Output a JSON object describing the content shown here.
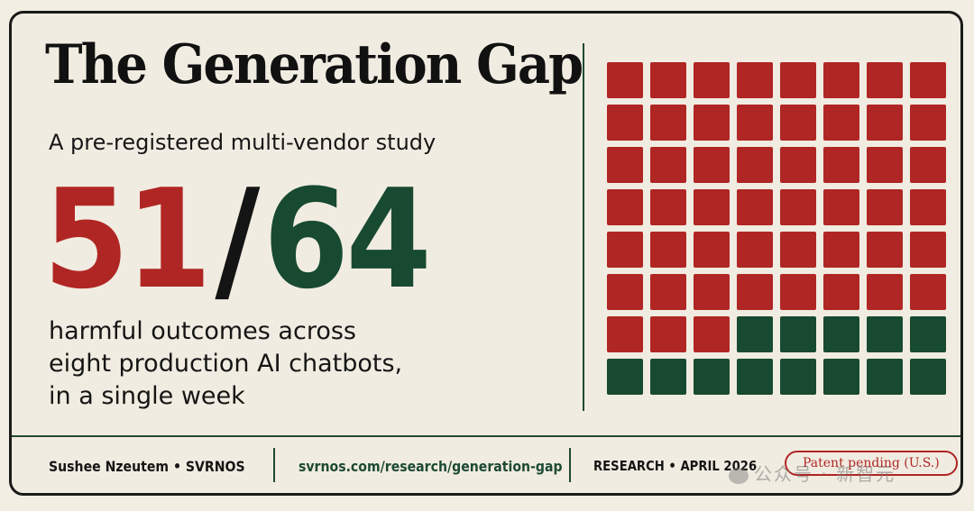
{
  "title": "The Generation Gap",
  "subtitle": "A pre-registered multi-vendor study",
  "stat": {
    "harmful": "51",
    "separator": "/",
    "total": "64"
  },
  "description": [
    "harmful outcomes across",
    "eight production AI chatbots,",
    "in a single week"
  ],
  "waffle": {
    "harmful_count": 51,
    "total_count": 64,
    "columns": 8,
    "harmful_color": "#b02624",
    "safe_color": "#174a31"
  },
  "footer": {
    "author": "Sushee Nzeutem  •  SVRNOS",
    "url": "svrnos.com/research/generation-gap",
    "category_date": "RESEARCH  •  APRIL 2026",
    "patent": "Patent pending (U.S.)"
  },
  "watermark": "公众号 · 新智元"
}
